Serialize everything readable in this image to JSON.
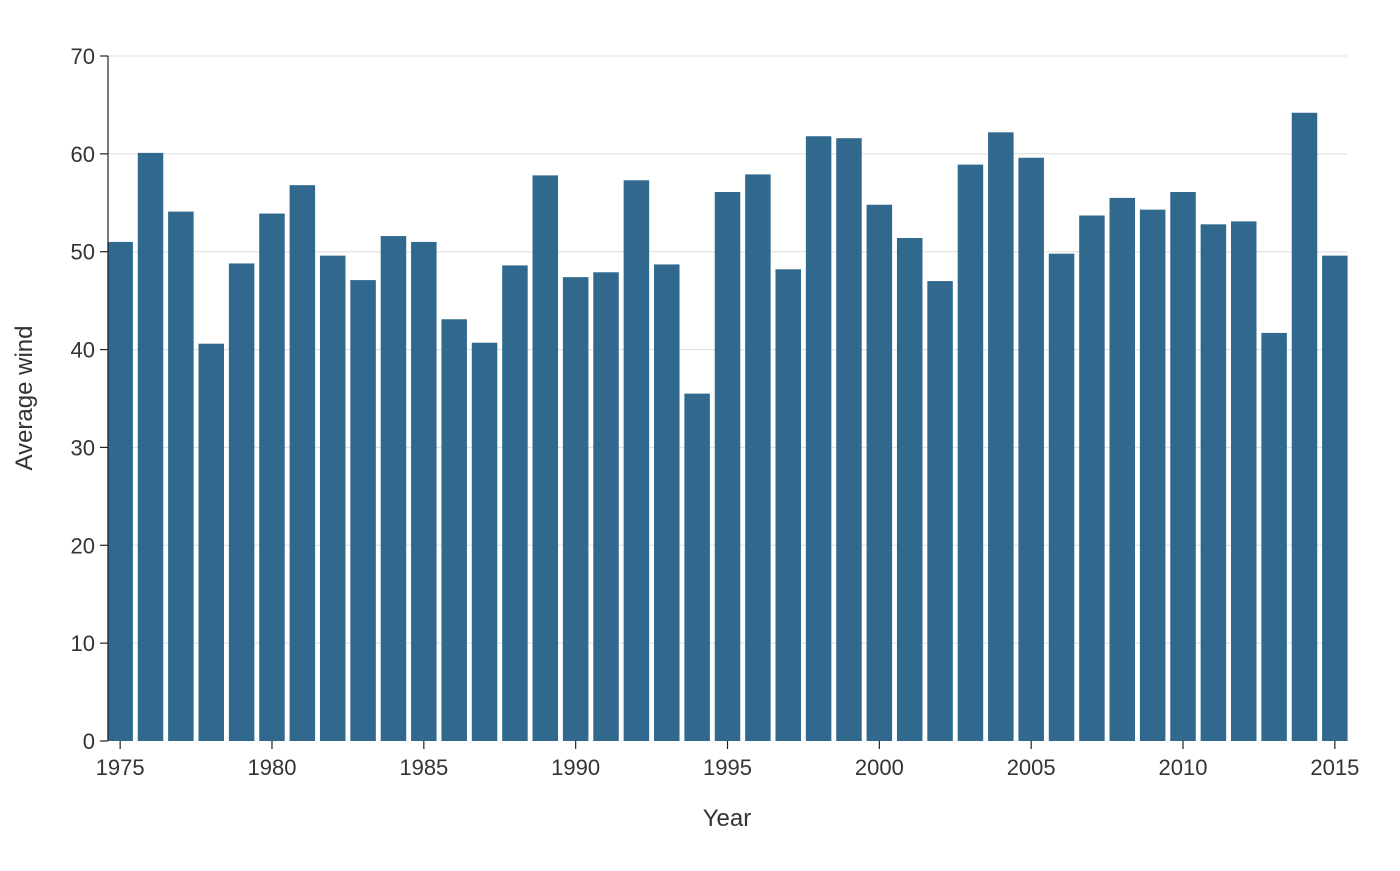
{
  "chart_data": {
    "type": "bar",
    "title": "",
    "xlabel": "Year",
    "ylabel": "Average wind",
    "ylim": [
      0,
      70
    ],
    "xlim": [
      1974.6,
      2015.4
    ],
    "yticks": [
      0,
      10,
      20,
      30,
      40,
      50,
      60,
      70
    ],
    "xticks": [
      1975,
      1980,
      1985,
      1990,
      1995,
      2000,
      2005,
      2010,
      2015
    ],
    "grid": "horizontal",
    "bar_color": "#31688e",
    "categories": [
      1975,
      1976,
      1977,
      1978,
      1979,
      1980,
      1981,
      1982,
      1983,
      1984,
      1985,
      1986,
      1987,
      1988,
      1989,
      1990,
      1991,
      1992,
      1993,
      1994,
      1995,
      1996,
      1997,
      1998,
      1999,
      2000,
      2001,
      2002,
      2003,
      2004,
      2005,
      2006,
      2007,
      2008,
      2009,
      2010,
      2011,
      2012,
      2013,
      2014,
      2015
    ],
    "values": [
      51.0,
      60.1,
      54.1,
      40.6,
      48.8,
      53.9,
      56.8,
      49.6,
      47.1,
      51.6,
      51.0,
      43.1,
      40.7,
      48.6,
      57.8,
      47.4,
      47.9,
      57.3,
      48.7,
      35.5,
      56.1,
      57.9,
      48.2,
      61.8,
      61.6,
      54.8,
      51.4,
      47.0,
      58.9,
      62.2,
      59.6,
      49.8,
      53.7,
      55.5,
      54.3,
      56.1,
      52.8,
      53.1,
      41.7,
      64.2,
      49.6
    ]
  }
}
